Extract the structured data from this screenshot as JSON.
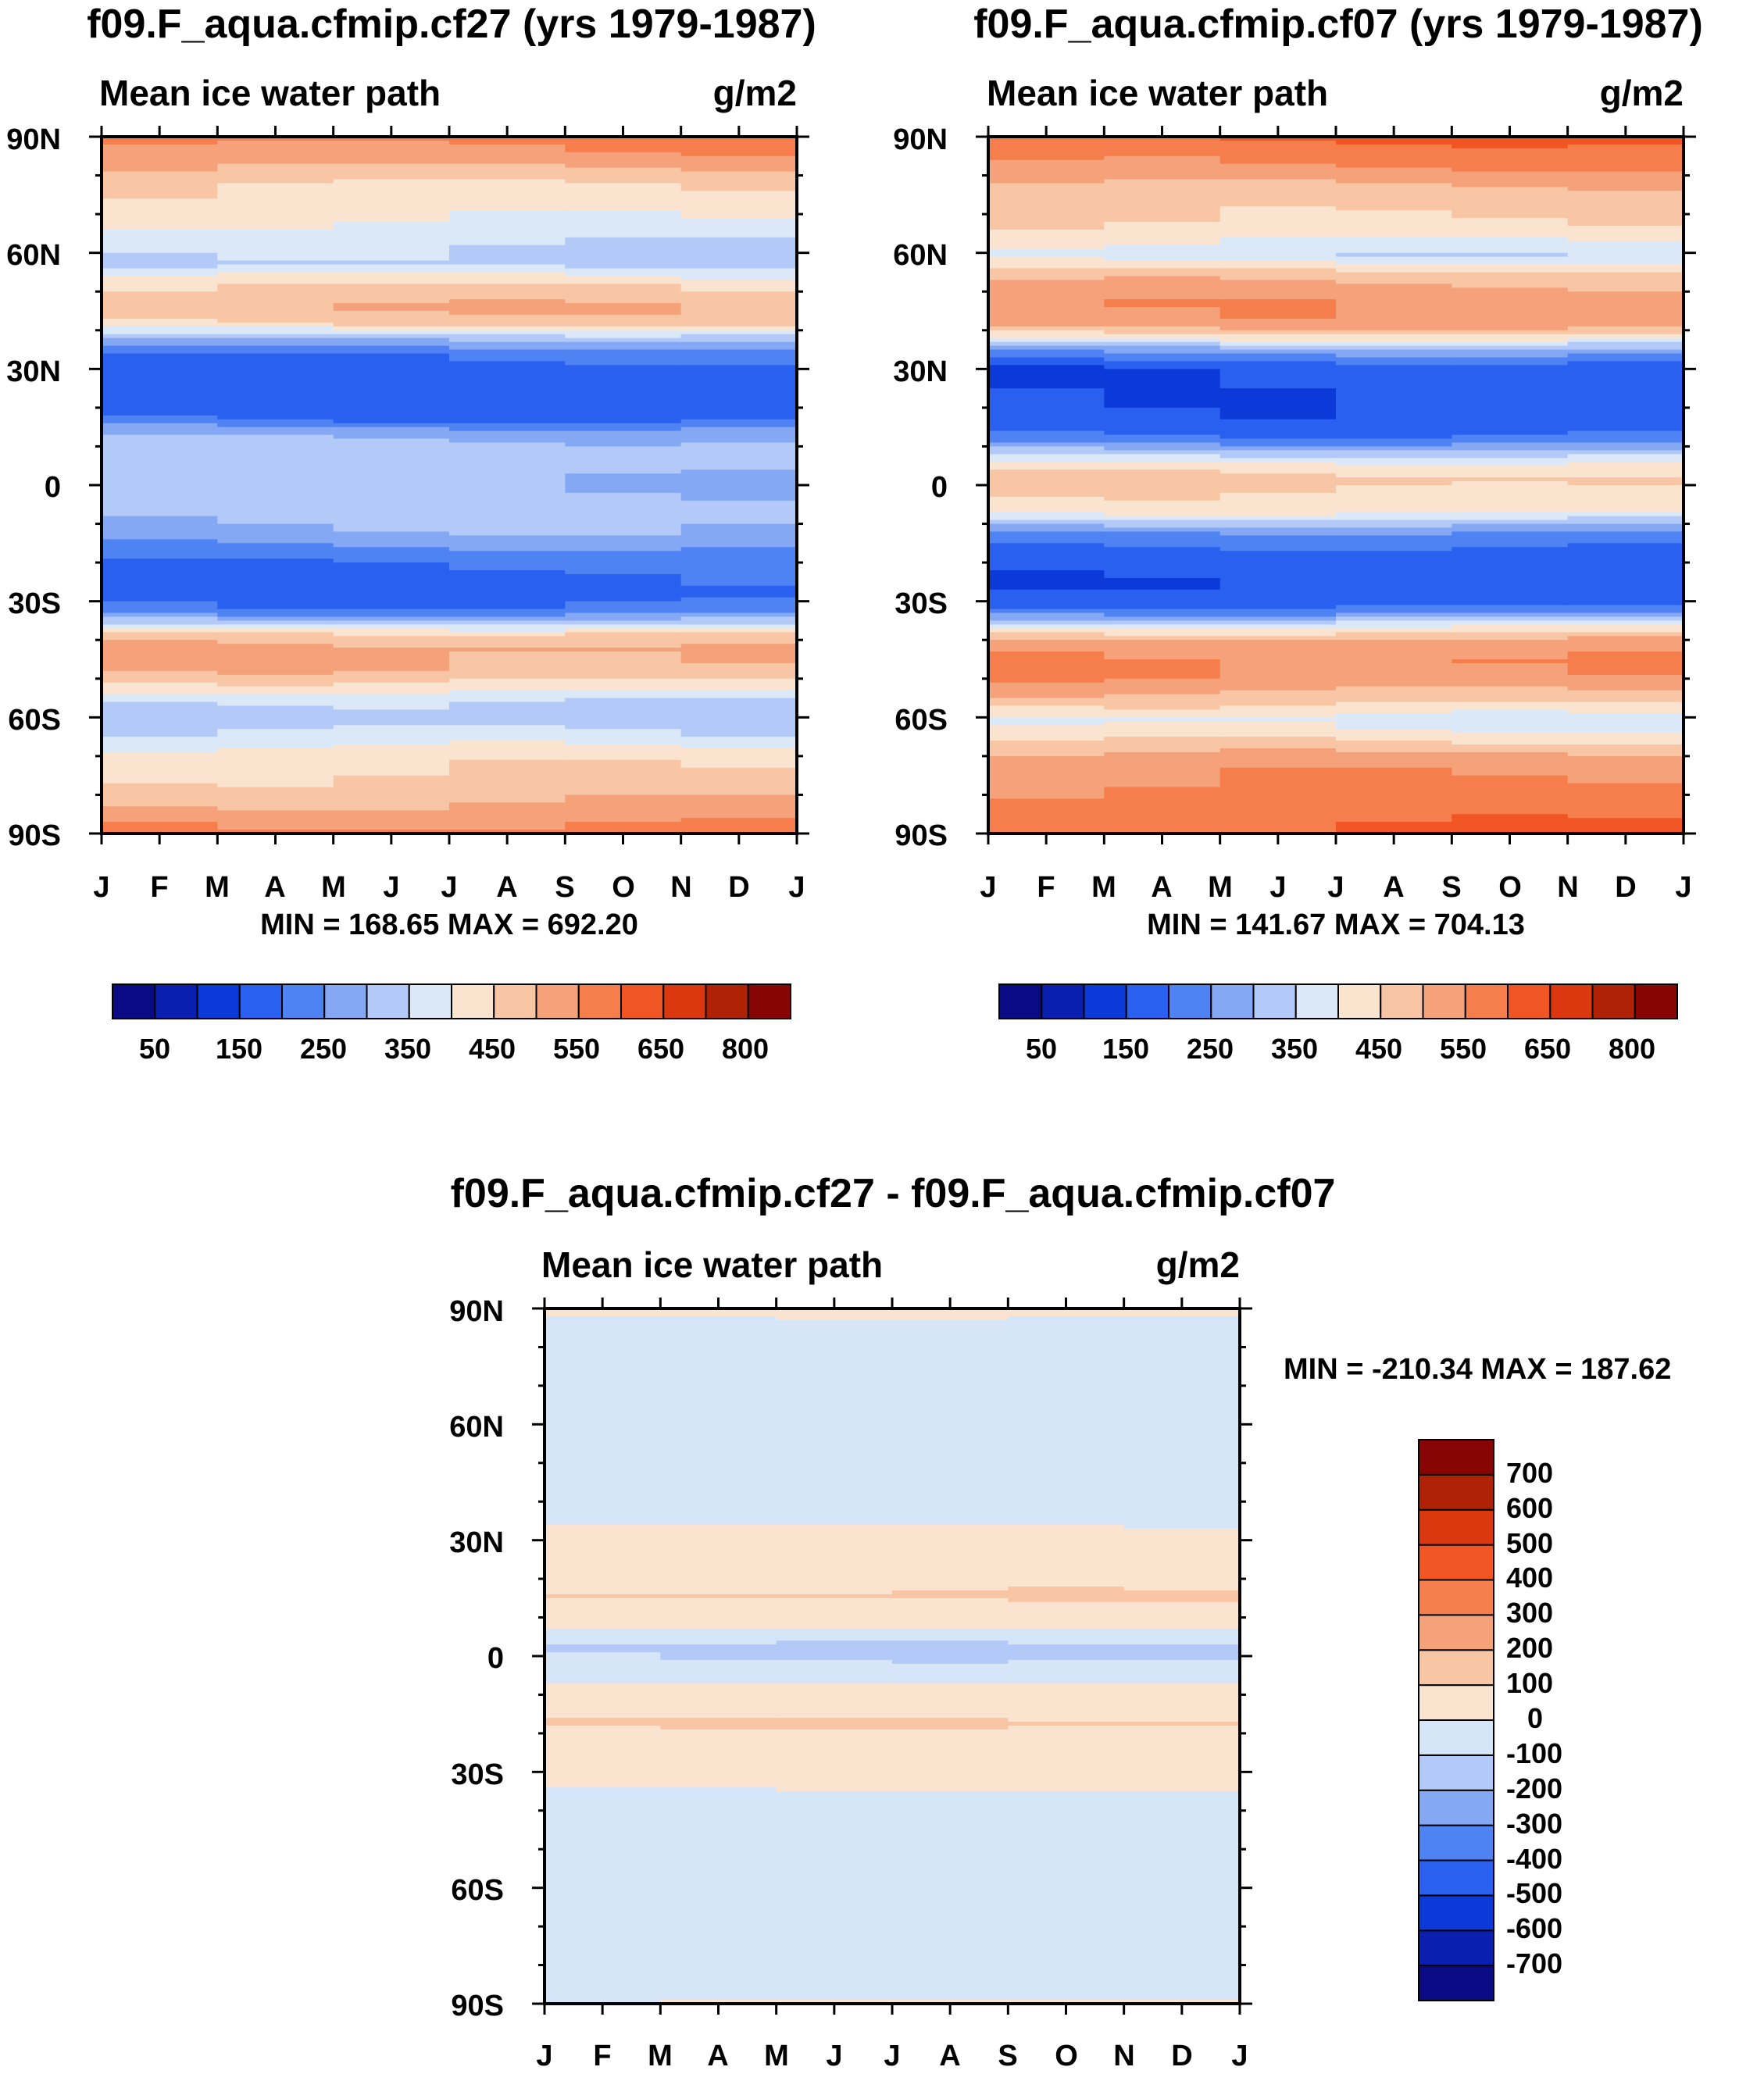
{
  "palette": {
    "abs_colors": [
      "#0a0a85",
      "#0a1fb0",
      "#0b3ad8",
      "#2a60f0",
      "#4f82f2",
      "#85a8f5",
      "#b3c9f7",
      "#dbe8f8",
      "#fbe4cf",
      "#f8c6a5",
      "#f5a27a",
      "#f57e4c",
      "#f05523",
      "#dc3810",
      "#b02205",
      "#870505"
    ],
    "diff_colors": [
      "#0a0a85",
      "#0a1fb0",
      "#0b3ad8",
      "#2a60f0",
      "#4f82f2",
      "#85a8f5",
      "#b3c9f7",
      "#d6e6f8",
      "#fbe4cf",
      "#f8c6a5",
      "#f5a27a",
      "#f57e4c",
      "#f05523",
      "#dc3810",
      "#b02205",
      "#870505"
    ]
  },
  "chart_data": [
    {
      "type": "heatmap",
      "title": "f09.F_aqua.cfmip.cf27 (yrs 1979-1987)",
      "left_string": "Mean ice water path",
      "right_string": "g/m2",
      "stats": "MIN = 168.65 MAX = 692.20",
      "x_tick_labels": [
        "J",
        "F",
        "M",
        "A",
        "M",
        "J",
        "J",
        "A",
        "S",
        "O",
        "N",
        "D",
        "J"
      ],
      "y_tick_labels": [
        "90N",
        "60N",
        "30N",
        "0",
        "30S",
        "60S",
        "90S"
      ],
      "ylim": [
        -90,
        90
      ],
      "levels": [
        50,
        100,
        150,
        200,
        250,
        300,
        350,
        400,
        450,
        500,
        550,
        600,
        650,
        700,
        800
      ],
      "colorbar_labels": [
        "50",
        "150",
        "250",
        "350",
        "450",
        "550",
        "650",
        "800"
      ],
      "profile": [
        [
          90,
          570
        ],
        [
          84,
          520
        ],
        [
          78,
          450
        ],
        [
          70,
          410
        ],
        [
          64,
          360
        ],
        [
          58,
          330
        ],
        [
          52,
          450
        ],
        [
          46,
          500
        ],
        [
          42,
          450
        ],
        [
          38,
          300
        ],
        [
          35,
          220
        ],
        [
          31,
          180
        ],
        [
          24,
          170
        ],
        [
          18,
          185
        ],
        [
          14,
          280
        ],
        [
          10,
          330
        ],
        [
          5,
          320
        ],
        [
          0,
          300
        ],
        [
          -5,
          320
        ],
        [
          -9,
          310
        ],
        [
          -13,
          280
        ],
        [
          -17,
          230
        ],
        [
          -22,
          185
        ],
        [
          -28,
          180
        ],
        [
          -32,
          220
        ],
        [
          -35,
          330
        ],
        [
          -38,
          460
        ],
        [
          -42,
          520
        ],
        [
          -47,
          500
        ],
        [
          -52,
          420
        ],
        [
          -56,
          340
        ],
        [
          -60,
          320
        ],
        [
          -64,
          360
        ],
        [
          -70,
          430
        ],
        [
          -78,
          470
        ],
        [
          -84,
          520
        ],
        [
          -88,
          560
        ],
        [
          -90,
          600
        ]
      ]
    },
    {
      "type": "heatmap",
      "title": "f09.F_aqua.cfmip.cf07 (yrs 1979-1987)",
      "left_string": "Mean ice water path",
      "right_string": "g/m2",
      "stats": "MIN = 141.67 MAX = 704.13",
      "x_tick_labels": [
        "J",
        "F",
        "M",
        "A",
        "M",
        "J",
        "J",
        "A",
        "S",
        "O",
        "N",
        "D",
        "J"
      ],
      "y_tick_labels": [
        "90N",
        "60N",
        "30N",
        "0",
        "30S",
        "60S",
        "90S"
      ],
      "ylim": [
        -90,
        90
      ],
      "levels": [
        50,
        100,
        150,
        200,
        250,
        300,
        350,
        400,
        450,
        500,
        550,
        600,
        650,
        700,
        800
      ],
      "colorbar_labels": [
        "50",
        "150",
        "250",
        "350",
        "450",
        "550",
        "650",
        "800"
      ],
      "profile": [
        [
          90,
          600
        ],
        [
          84,
          560
        ],
        [
          76,
          480
        ],
        [
          70,
          460
        ],
        [
          66,
          430
        ],
        [
          60,
          360
        ],
        [
          55,
          480
        ],
        [
          48,
          540
        ],
        [
          42,
          530
        ],
        [
          38,
          390
        ],
        [
          35,
          260
        ],
        [
          31,
          165
        ],
        [
          24,
          160
        ],
        [
          16,
          170
        ],
        [
          12,
          230
        ],
        [
          9,
          320
        ],
        [
          6,
          410
        ],
        [
          2,
          470
        ],
        [
          -2,
          440
        ],
        [
          -6,
          420
        ],
        [
          -9,
          330
        ],
        [
          -12,
          240
        ],
        [
          -17,
          175
        ],
        [
          -25,
          160
        ],
        [
          -30,
          180
        ],
        [
          -33,
          260
        ],
        [
          -36,
          400
        ],
        [
          -40,
          520
        ],
        [
          -45,
          560
        ],
        [
          -50,
          540
        ],
        [
          -55,
          470
        ],
        [
          -60,
          380
        ],
        [
          -64,
          420
        ],
        [
          -70,
          520
        ],
        [
          -78,
          560
        ],
        [
          -84,
          580
        ],
        [
          -90,
          610
        ]
      ]
    },
    {
      "type": "heatmap",
      "title": "f09.F_aqua.cfmip.cf27 - f09.F_aqua.cfmip.cf07",
      "left_string": "Mean ice water path",
      "right_string": "g/m2",
      "stats": "MIN = -210.34 MAX = 187.62",
      "x_tick_labels": [
        "J",
        "F",
        "M",
        "A",
        "M",
        "J",
        "J",
        "A",
        "S",
        "O",
        "N",
        "D",
        "J"
      ],
      "y_tick_labels": [
        "90N",
        "60N",
        "30N",
        "0",
        "30S",
        "60S",
        "90S"
      ],
      "ylim": [
        -90,
        90
      ],
      "levels": [
        -700,
        -600,
        -500,
        -400,
        -300,
        -200,
        -100,
        0,
        100,
        200,
        300,
        400,
        500,
        600,
        700
      ],
      "colorbar_labels": [
        "700",
        "600",
        "500",
        "400",
        "300",
        "200",
        "100",
        "0",
        "-100",
        "-200",
        "-300",
        "-400",
        "-500",
        "-600",
        "-700"
      ],
      "profile": [
        [
          90,
          20
        ],
        [
          86,
          -30
        ],
        [
          60,
          -40
        ],
        [
          36,
          -30
        ],
        [
          32,
          40
        ],
        [
          22,
          60
        ],
        [
          16,
          110
        ],
        [
          12,
          60
        ],
        [
          8,
          40
        ],
        [
          6,
          -60
        ],
        [
          3,
          -110
        ],
        [
          0,
          -105
        ],
        [
          -4,
          -60
        ],
        [
          -8,
          40
        ],
        [
          -14,
          80
        ],
        [
          -17,
          110
        ],
        [
          -22,
          50
        ],
        [
          -32,
          30
        ],
        [
          -36,
          -30
        ],
        [
          -60,
          -40
        ],
        [
          -80,
          -50
        ],
        [
          -88,
          -30
        ],
        [
          -90,
          40
        ]
      ]
    }
  ]
}
